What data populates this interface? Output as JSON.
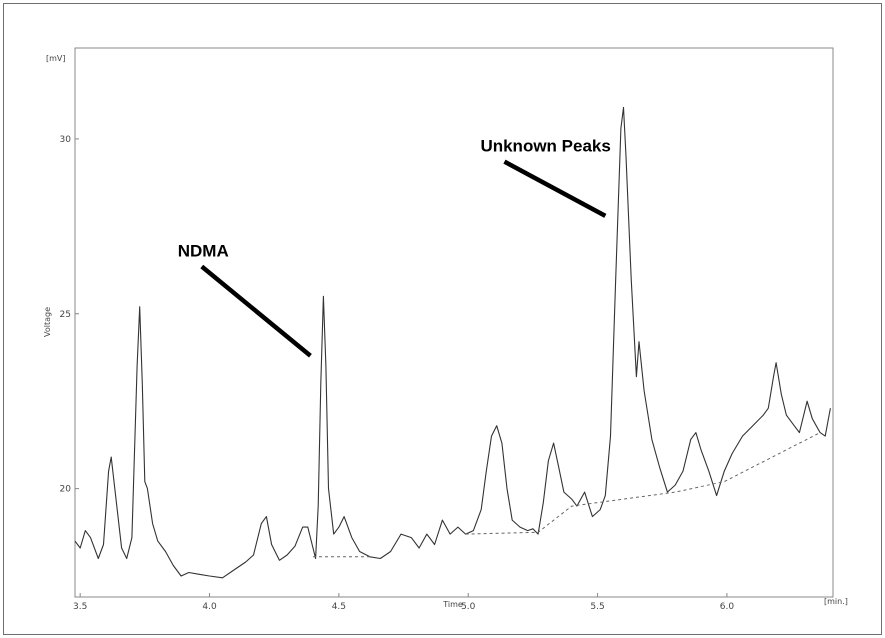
{
  "chart_data": {
    "type": "line",
    "title": "",
    "xlabel": "Time",
    "ylabel": "Voltage",
    "x_unit": "[min.]",
    "y_unit": "[mV]",
    "xlim": [
      3.48,
      6.41
    ],
    "ylim": [
      16.9,
      32.6
    ],
    "x_ticks": [
      3.5,
      4.0,
      4.5,
      5.0,
      5.5,
      6.0
    ],
    "x_tick_labels": [
      "3.5",
      "4.0",
      "4.5",
      "5.0",
      "5.5",
      "6.0"
    ],
    "y_ticks": [
      20,
      25,
      30
    ],
    "y_tick_labels": [
      "20",
      "25",
      "30"
    ],
    "grid": false,
    "series": [
      {
        "style": "solid",
        "points": [
          [
            3.48,
            18.5
          ],
          [
            3.5,
            18.3
          ],
          [
            3.52,
            18.8
          ],
          [
            3.54,
            18.6
          ],
          [
            3.57,
            18.0
          ],
          [
            3.59,
            18.4
          ],
          [
            3.61,
            20.5
          ],
          [
            3.62,
            20.9
          ],
          [
            3.64,
            19.6
          ],
          [
            3.66,
            18.3
          ],
          [
            3.68,
            18.0
          ],
          [
            3.7,
            18.6
          ],
          [
            3.72,
            23.5
          ],
          [
            3.73,
            25.2
          ],
          [
            3.74,
            23.0
          ],
          [
            3.75,
            20.2
          ],
          [
            3.76,
            20.0
          ],
          [
            3.78,
            19.0
          ],
          [
            3.8,
            18.5
          ],
          [
            3.83,
            18.2
          ],
          [
            3.86,
            17.8
          ],
          [
            3.89,
            17.5
          ],
          [
            3.92,
            17.6
          ],
          [
            3.96,
            17.55
          ],
          [
            4.0,
            17.5
          ],
          [
            4.05,
            17.45
          ],
          [
            4.1,
            17.7
          ],
          [
            4.14,
            17.9
          ],
          [
            4.17,
            18.1
          ],
          [
            4.2,
            19.0
          ],
          [
            4.22,
            19.2
          ],
          [
            4.24,
            18.4
          ],
          [
            4.27,
            17.95
          ],
          [
            4.3,
            18.1
          ],
          [
            4.33,
            18.35
          ],
          [
            4.36,
            18.9
          ],
          [
            4.38,
            18.9
          ],
          [
            4.4,
            18.3
          ],
          [
            4.41,
            18.0
          ],
          [
            4.42,
            19.5
          ],
          [
            4.43,
            23.0
          ],
          [
            4.44,
            25.5
          ],
          [
            4.45,
            23.5
          ],
          [
            4.46,
            20.0
          ],
          [
            4.48,
            18.7
          ],
          [
            4.5,
            18.9
          ],
          [
            4.52,
            19.2
          ],
          [
            4.55,
            18.6
          ],
          [
            4.58,
            18.2
          ],
          [
            4.62,
            18.05
          ],
          [
            4.66,
            18.0
          ],
          [
            4.7,
            18.2
          ],
          [
            4.74,
            18.7
          ],
          [
            4.78,
            18.6
          ],
          [
            4.81,
            18.3
          ],
          [
            4.84,
            18.7
          ],
          [
            4.87,
            18.4
          ],
          [
            4.9,
            19.1
          ],
          [
            4.93,
            18.7
          ],
          [
            4.96,
            18.9
          ],
          [
            4.99,
            18.7
          ],
          [
            5.02,
            18.8
          ],
          [
            5.05,
            19.4
          ],
          [
            5.07,
            20.5
          ],
          [
            5.09,
            21.5
          ],
          [
            5.11,
            21.8
          ],
          [
            5.13,
            21.3
          ],
          [
            5.15,
            20.0
          ],
          [
            5.17,
            19.1
          ],
          [
            5.2,
            18.9
          ],
          [
            5.23,
            18.8
          ],
          [
            5.25,
            18.85
          ],
          [
            5.27,
            18.7
          ],
          [
            5.29,
            19.6
          ],
          [
            5.31,
            20.8
          ],
          [
            5.33,
            21.3
          ],
          [
            5.35,
            20.6
          ],
          [
            5.37,
            19.9
          ],
          [
            5.4,
            19.7
          ],
          [
            5.42,
            19.5
          ],
          [
            5.45,
            19.9
          ],
          [
            5.48,
            19.2
          ],
          [
            5.51,
            19.4
          ],
          [
            5.53,
            19.8
          ],
          [
            5.55,
            21.5
          ],
          [
            5.57,
            26.0
          ],
          [
            5.59,
            30.3
          ],
          [
            5.6,
            30.9
          ],
          [
            5.61,
            29.5
          ],
          [
            5.63,
            26.0
          ],
          [
            5.65,
            23.2
          ],
          [
            5.66,
            24.2
          ],
          [
            5.68,
            22.8
          ],
          [
            5.71,
            21.4
          ],
          [
            5.74,
            20.6
          ],
          [
            5.77,
            19.9
          ],
          [
            5.8,
            20.1
          ],
          [
            5.83,
            20.5
          ],
          [
            5.86,
            21.4
          ],
          [
            5.88,
            21.6
          ],
          [
            5.9,
            21.1
          ],
          [
            5.93,
            20.5
          ],
          [
            5.96,
            19.8
          ],
          [
            5.99,
            20.5
          ],
          [
            6.02,
            21.0
          ],
          [
            6.06,
            21.5
          ],
          [
            6.1,
            21.8
          ],
          [
            6.14,
            22.1
          ],
          [
            6.16,
            22.3
          ],
          [
            6.18,
            23.2
          ],
          [
            6.19,
            23.6
          ],
          [
            6.21,
            22.7
          ],
          [
            6.23,
            22.1
          ],
          [
            6.26,
            21.8
          ],
          [
            6.28,
            21.6
          ],
          [
            6.31,
            22.5
          ],
          [
            6.33,
            22.0
          ],
          [
            6.36,
            21.6
          ],
          [
            6.38,
            21.5
          ],
          [
            6.4,
            22.3
          ]
        ]
      },
      {
        "style": "dashed",
        "points": [
          [
            4.4,
            18.05
          ],
          [
            4.62,
            18.05
          ]
        ]
      },
      {
        "style": "dashed",
        "points": [
          [
            4.99,
            18.7
          ],
          [
            5.27,
            18.75
          ],
          [
            5.4,
            19.5
          ],
          [
            5.8,
            19.9
          ],
          [
            5.99,
            20.2
          ],
          [
            6.36,
            21.6
          ]
        ]
      }
    ],
    "annotations": [
      {
        "text": "NDMA",
        "pointer_from": [
          3.97,
          26.35
        ],
        "pointer_to": [
          4.39,
          23.8
        ]
      },
      {
        "text": "Unknown Peaks",
        "pointer_from": [
          5.14,
          29.35
        ],
        "pointer_to": [
          5.53,
          27.8
        ]
      }
    ]
  }
}
